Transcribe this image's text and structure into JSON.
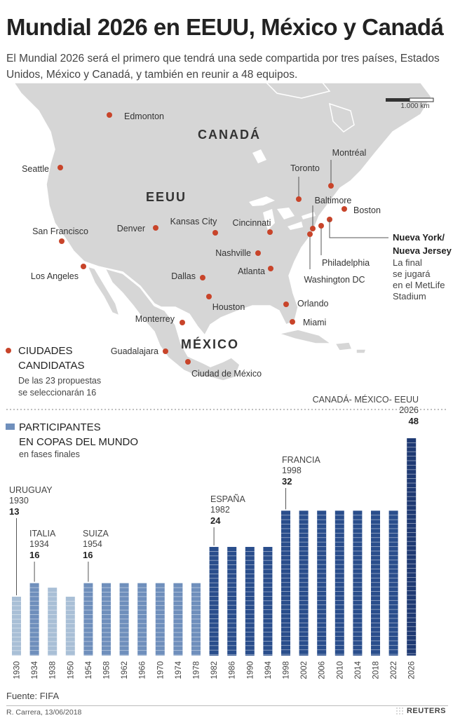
{
  "header": {
    "title": "Mundial 2026 en EEUU, México y Canadá",
    "subtitle": "El Mundial 2026 será el primero que tendrá una sede compartida por tres países, Estados Unidos, México y Canadá, y también en reunir a 48 equipos."
  },
  "map": {
    "scale_label": "1.000 km",
    "countries": [
      "CANADÁ",
      "EEUU",
      "MÉXICO"
    ],
    "cities": [
      "Edmonton",
      "Seattle",
      "San Francisco",
      "Los Angeles",
      "Denver",
      "Kansas City",
      "Cincinnati",
      "Toronto",
      "Montréal",
      "Baltimore",
      "Boston",
      "Nashville",
      "Atlanta",
      "Dallas",
      "Houston",
      "Orlando",
      "Miami",
      "Philadelphia",
      "Washington DC",
      "Monterrey",
      "Guadalajara",
      "Ciudad de México"
    ],
    "final_title": [
      "Nueva York/",
      "Nueva Jersey"
    ],
    "final_note": [
      "La final",
      "se jugará",
      "en el MetLife",
      "Stadium"
    ],
    "legend_title": [
      "CIUDADES",
      "CANDIDATAS"
    ],
    "legend_note": [
      "De las 23 propuestas",
      "se seleccionarán 16"
    ],
    "colors": {
      "land": "#d6d6d6",
      "city_dot": "#c8442a"
    }
  },
  "chart_data": {
    "type": "bar",
    "legend_title": [
      "PARTICIPANTES",
      "EN COPAS DEL MUNDO"
    ],
    "legend_note": "en fases finales",
    "categories": [
      "1930",
      "1934",
      "1938",
      "1950",
      "1954",
      "1958",
      "1962",
      "1966",
      "1970",
      "1974",
      "1978",
      "1982",
      "1986",
      "1990",
      "1994",
      "1998",
      "2002",
      "2006",
      "2010",
      "2014",
      "2018",
      "2022",
      "2026"
    ],
    "values": [
      13,
      16,
      15,
      13,
      16,
      16,
      16,
      16,
      16,
      16,
      16,
      24,
      24,
      24,
      24,
      32,
      32,
      32,
      32,
      32,
      32,
      32,
      48
    ],
    "annotations": [
      {
        "index": 0,
        "lines": [
          "URUGUAY",
          "1930"
        ],
        "value": "13"
      },
      {
        "index": 1,
        "lines": [
          "ITALIA",
          "1934"
        ],
        "value": "16"
      },
      {
        "index": 4,
        "lines": [
          "SUIZA",
          "1954"
        ],
        "value": "16"
      },
      {
        "index": 11,
        "lines": [
          "ESPAÑA",
          "1982"
        ],
        "value": "24"
      },
      {
        "index": 15,
        "lines": [
          "FRANCIA",
          "1998"
        ],
        "value": "32"
      },
      {
        "index": 22,
        "lines": [
          "CANADÁ- MÉXICO- EEUU",
          "2026"
        ],
        "value": "48"
      }
    ],
    "colors": {
      "light": "#a9bfd6",
      "medium": "#6f8fbc",
      "dark": "#2a4e8c",
      "darkest": "#1f3a73"
    },
    "ylim": [
      0,
      48
    ]
  },
  "footer": {
    "source": "Fuente: FIFA",
    "credit": "R. Carrera, 13/06/2018",
    "logo": "REUTERS"
  }
}
